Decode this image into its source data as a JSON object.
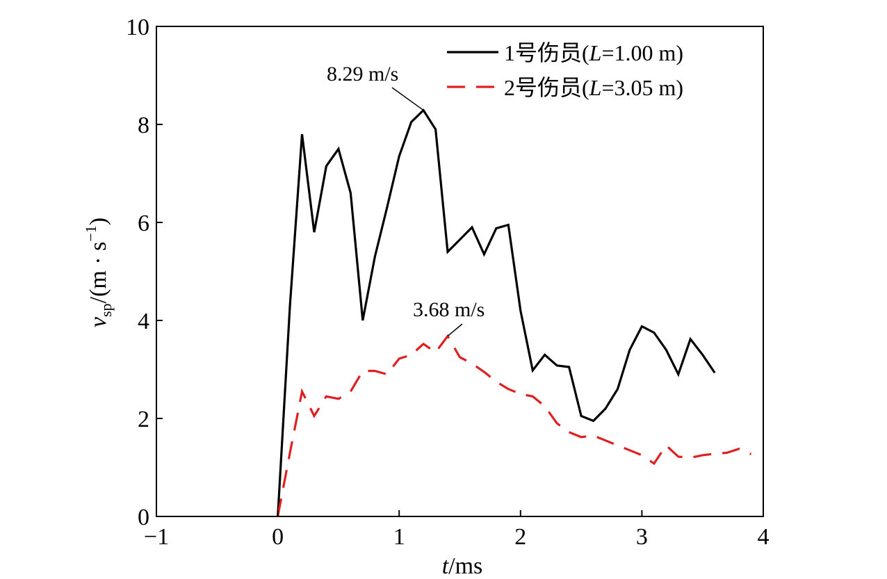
{
  "chart_data": {
    "type": "line",
    "xlabel": {
      "var": "t",
      "unit": "/ms"
    },
    "ylabel": {
      "var": "v",
      "sub": "sp",
      "unit": "/(m · s",
      "sup": "−1",
      "close": ")"
    },
    "xlim": [
      -1,
      4
    ],
    "ylim": [
      0,
      10
    ],
    "xticks": [
      -1,
      0,
      1,
      2,
      3,
      4
    ],
    "xtick_labels": [
      "−1",
      "0",
      "1",
      "2",
      "3",
      "4"
    ],
    "yticks": [
      0,
      2,
      4,
      6,
      8,
      10
    ],
    "ytick_labels": [
      "0",
      "2",
      "4",
      "6",
      "8",
      "10"
    ],
    "grid": false,
    "legend_position": "top-right",
    "series": [
      {
        "name": "1号伤员(L=1.00 m)",
        "legend_prefix": "1号伤员(",
        "legend_var": "L",
        "legend_suffix": "=1.00 m)",
        "color": "#000000",
        "style": "solid",
        "x": [
          0,
          0.1,
          0.2,
          0.3,
          0.4,
          0.5,
          0.6,
          0.7,
          0.8,
          0.9,
          1.0,
          1.1,
          1.2,
          1.3,
          1.4,
          1.5,
          1.6,
          1.7,
          1.8,
          1.9,
          2.0,
          2.1,
          2.2,
          2.3,
          2.4,
          2.5,
          2.6,
          2.7,
          2.8,
          2.9,
          3.0,
          3.1,
          3.2,
          3.3,
          3.4,
          3.5,
          3.6
        ],
        "y": [
          0,
          4.3,
          7.8,
          5.8,
          7.15,
          7.5,
          6.6,
          4.0,
          5.3,
          6.3,
          7.35,
          8.05,
          8.29,
          7.9,
          5.4,
          5.65,
          5.9,
          5.35,
          5.88,
          5.95,
          4.2,
          2.98,
          3.3,
          3.08,
          3.05,
          2.05,
          1.95,
          2.2,
          2.6,
          3.4,
          3.88,
          3.75,
          3.4,
          2.9,
          3.62,
          3.3,
          2.93
        ]
      },
      {
        "name": "2号伤员(L=3.05 m)",
        "legend_prefix": "2号伤员(",
        "legend_var": "L",
        "legend_suffix": "=3.05 m)",
        "color": "#e02020",
        "style": "dashed",
        "x": [
          0,
          0.1,
          0.2,
          0.3,
          0.4,
          0.5,
          0.6,
          0.7,
          0.8,
          0.9,
          1.0,
          1.1,
          1.2,
          1.3,
          1.4,
          1.5,
          1.6,
          1.7,
          1.8,
          1.9,
          2.0,
          2.1,
          2.2,
          2.3,
          2.4,
          2.5,
          2.6,
          2.7,
          2.8,
          2.9,
          3.0,
          3.1,
          3.2,
          3.3,
          3.4,
          3.5,
          3.6,
          3.7,
          3.8,
          3.9
        ],
        "y": [
          0,
          1.3,
          2.55,
          2.05,
          2.45,
          2.4,
          2.55,
          2.97,
          2.97,
          2.9,
          3.22,
          3.3,
          3.52,
          3.35,
          3.68,
          3.25,
          3.12,
          2.95,
          2.75,
          2.6,
          2.5,
          2.45,
          2.25,
          1.9,
          1.72,
          1.62,
          1.65,
          1.55,
          1.45,
          1.35,
          1.25,
          1.08,
          1.45,
          1.22,
          1.2,
          1.25,
          1.28,
          1.3,
          1.38,
          1.27
        ]
      }
    ],
    "annotations": [
      {
        "text": "8.29 m/s",
        "x": 1.2,
        "y": 8.29,
        "series": 0
      },
      {
        "text": "3.68 m/s",
        "x": 1.4,
        "y": 3.68,
        "series": 1
      }
    ]
  }
}
